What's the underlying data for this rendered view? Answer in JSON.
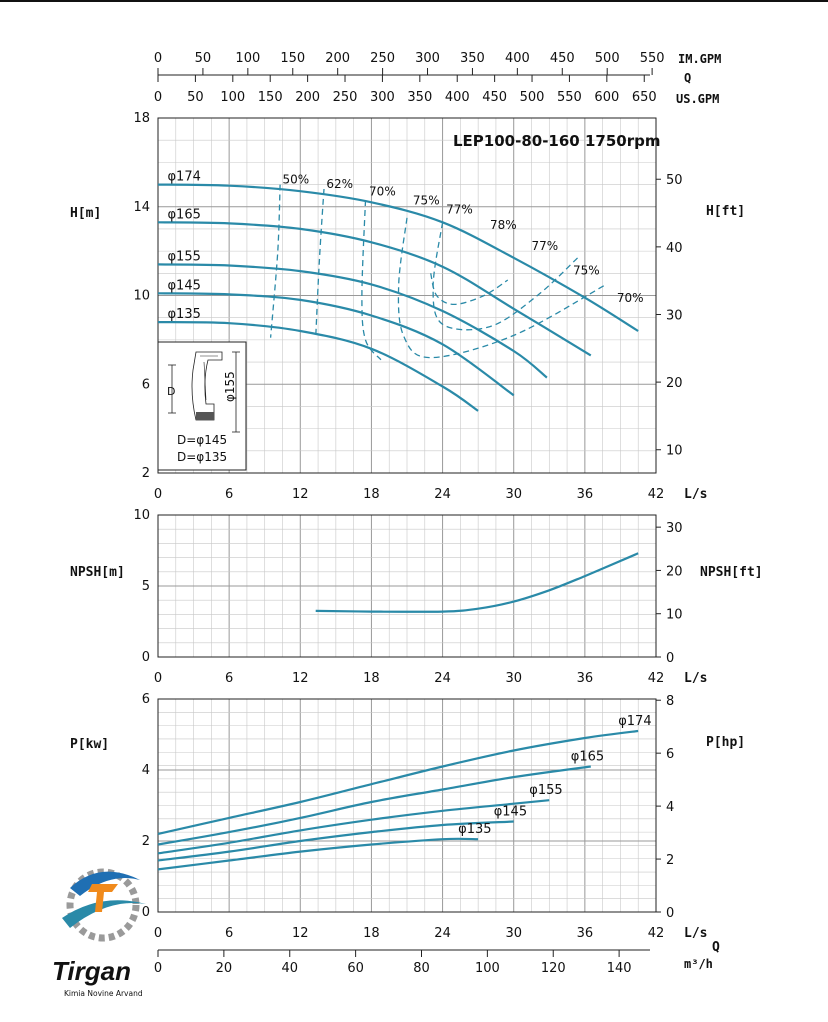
{
  "colors": {
    "curve": "#2a8aa8",
    "grid": "#999999",
    "grid_minor": "#c8c8c8",
    "axis": "#222222",
    "logo_blue": "#1f6fb3",
    "logo_orange": "#f08a1c",
    "logo_gray": "#8a8a8a"
  },
  "top_axes": {
    "im_gpm": {
      "label": "IM.GPM",
      "ticks": [
        "0",
        "50",
        "100",
        "150",
        "200",
        "250",
        "300",
        "350",
        "400",
        "450",
        "500",
        "550"
      ]
    },
    "q_label": "Q",
    "us_gpm": {
      "label": "US.GPM",
      "ticks": [
        "0",
        "50",
        "100",
        "150",
        "200",
        "250",
        "300",
        "350",
        "400",
        "450",
        "500",
        "550",
        "600",
        "650"
      ]
    }
  },
  "bottom_axes": {
    "m3h": {
      "label": "m³/h",
      "ticks": [
        "0",
        "20",
        "40",
        "60",
        "80",
        "100",
        "120",
        "140"
      ]
    },
    "q_label": "Q"
  },
  "inset": {
    "d_label": "D",
    "phi_label": "φ155",
    "lines": [
      "D=φ145",
      "D=φ135"
    ]
  },
  "logo": {
    "name": "Tirgan",
    "tagline": "Kimia Novine Arvand"
  },
  "chart_data": [
    {
      "type": "line",
      "title": "LEP100-80-160 1750rpm",
      "xlabel": "L/s",
      "ylabel": "H[m]",
      "ylabel_right": "H[ft]",
      "xlim": [
        0,
        42
      ],
      "ylim": [
        2,
        18
      ],
      "ylim_right_ticks": [
        "10",
        "20",
        "30",
        "40",
        "50"
      ],
      "xticks": [
        "0",
        "6",
        "12",
        "18",
        "24",
        "30",
        "36",
        "42"
      ],
      "yticks": [
        "2",
        "6",
        "10",
        "14",
        "18"
      ],
      "grid": true,
      "series": [
        {
          "name": "φ174",
          "x": [
            0,
            6,
            12,
            18,
            24,
            30,
            36,
            40.5
          ],
          "y": [
            15.0,
            14.95,
            14.7,
            14.2,
            13.3,
            11.7,
            9.9,
            8.4
          ]
        },
        {
          "name": "φ165",
          "x": [
            0,
            6,
            12,
            18,
            24,
            30,
            36.5
          ],
          "y": [
            13.3,
            13.25,
            13.0,
            12.4,
            11.3,
            9.4,
            7.3
          ]
        },
        {
          "name": "φ155",
          "x": [
            0,
            6,
            12,
            18,
            24,
            30,
            32.8
          ],
          "y": [
            11.4,
            11.35,
            11.1,
            10.5,
            9.3,
            7.5,
            6.3
          ]
        },
        {
          "name": "φ145",
          "x": [
            0,
            6,
            12,
            18,
            24,
            30
          ],
          "y": [
            10.1,
            10.05,
            9.8,
            9.1,
            7.8,
            5.5
          ]
        },
        {
          "name": "φ135",
          "x": [
            0,
            6,
            12,
            18,
            24,
            27
          ],
          "y": [
            8.8,
            8.75,
            8.4,
            7.6,
            5.9,
            4.8
          ]
        }
      ],
      "efficiency_curves": [
        {
          "label": "50%",
          "x": [
            10.3,
            10.1,
            9.5
          ],
          "y": [
            15.0,
            12.0,
            8.1
          ]
        },
        {
          "label": "62%",
          "x": [
            14.0,
            13.6,
            13.3
          ],
          "y": [
            14.8,
            11.5,
            8.1
          ]
        },
        {
          "label": "70%",
          "x": [
            17.5,
            17.2,
            17.5,
            18.8
          ],
          "y": [
            14.3,
            10.0,
            8.0,
            7.1
          ]
        },
        {
          "label": "75%",
          "x": [
            21.0,
            20.3,
            20.7,
            23.0,
            30.0,
            37.8
          ],
          "y": [
            13.5,
            10.5,
            8.2,
            7.2,
            8.2,
            10.5
          ]
        },
        {
          "label": "77%",
          "x": [
            24.0,
            23.2,
            24.0,
            28.0,
            32.0,
            35.4
          ],
          "y": [
            13.3,
            10.4,
            8.7,
            8.6,
            10.0,
            11.7
          ]
        },
        {
          "label": "78%",
          "x": [
            23.0,
            23.5,
            25.0,
            27.5,
            29.5
          ],
          "y": [
            11.0,
            10.0,
            9.6,
            10.0,
            10.7
          ]
        }
      ],
      "efficiency_labels": [
        {
          "text": "50%",
          "x": 10.5,
          "y": 15.05
        },
        {
          "text": "62%",
          "x": 14.2,
          "y": 14.85
        },
        {
          "text": "70%",
          "x": 17.8,
          "y": 14.5
        },
        {
          "text": "75%",
          "x": 21.5,
          "y": 14.1
        },
        {
          "text": "77%",
          "x": 24.3,
          "y": 13.7
        },
        {
          "text": "78%",
          "x": 28.0,
          "y": 13.0
        },
        {
          "text": "77%",
          "x": 31.5,
          "y": 12.05
        },
        {
          "text": "75%",
          "x": 35.0,
          "y": 10.95
        },
        {
          "text": "70%",
          "x": 38.7,
          "y": 9.7
        }
      ]
    },
    {
      "type": "line",
      "xlabel": "L/s",
      "ylabel": "NPSH[m]",
      "ylabel_right": "NPSH[ft]",
      "xlim": [
        0,
        42
      ],
      "ylim": [
        0,
        10
      ],
      "xticks": [
        "0",
        "6",
        "12",
        "18",
        "24",
        "30",
        "36",
        "42"
      ],
      "yticks": [
        "0",
        "5",
        "10"
      ],
      "ylim_right_ticks": [
        "0",
        "10",
        "20",
        "30"
      ],
      "grid": true,
      "series": [
        {
          "name": "",
          "x": [
            13.3,
            18,
            24,
            27,
            30,
            33,
            36,
            40.5
          ],
          "y": [
            3.25,
            3.2,
            3.2,
            3.4,
            3.9,
            4.7,
            5.7,
            7.3
          ]
        }
      ]
    },
    {
      "type": "line",
      "xlabel": "L/s",
      "ylabel": "P[kw]",
      "ylabel_right": "P[hp]",
      "xlim": [
        0,
        42
      ],
      "ylim": [
        0,
        6
      ],
      "xticks": [
        "0",
        "6",
        "12",
        "18",
        "24",
        "30",
        "36",
        "42"
      ],
      "yticks": [
        "0",
        "2",
        "4",
        "6"
      ],
      "ylim_right_ticks": [
        "0",
        "2",
        "4",
        "6",
        "8"
      ],
      "grid": true,
      "series": [
        {
          "name": "φ174",
          "x": [
            0,
            6,
            12,
            18,
            24,
            30,
            36,
            40.5
          ],
          "y": [
            2.2,
            2.65,
            3.1,
            3.6,
            4.1,
            4.55,
            4.9,
            5.1
          ]
        },
        {
          "name": "φ165",
          "x": [
            0,
            6,
            12,
            18,
            24,
            30,
            36.5
          ],
          "y": [
            1.9,
            2.25,
            2.65,
            3.1,
            3.45,
            3.8,
            4.1
          ]
        },
        {
          "name": "φ155",
          "x": [
            0,
            6,
            12,
            18,
            24,
            30,
            33
          ],
          "y": [
            1.65,
            1.95,
            2.3,
            2.6,
            2.85,
            3.05,
            3.15
          ]
        },
        {
          "name": "φ145",
          "x": [
            0,
            6,
            12,
            18,
            24,
            30
          ],
          "y": [
            1.45,
            1.7,
            2.0,
            2.25,
            2.45,
            2.55
          ]
        },
        {
          "name": "φ135",
          "x": [
            0,
            6,
            12,
            18,
            24,
            27
          ],
          "y": [
            1.2,
            1.45,
            1.7,
            1.9,
            2.05,
            2.05
          ]
        }
      ]
    }
  ]
}
